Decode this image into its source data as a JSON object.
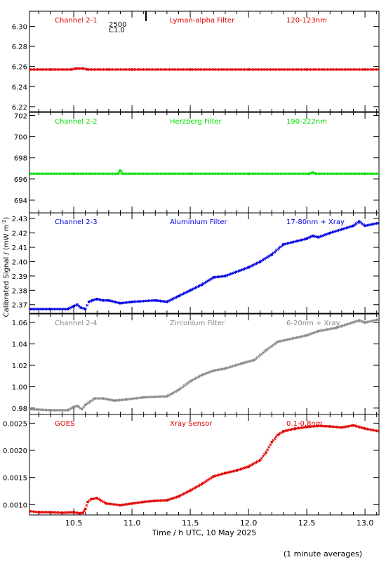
{
  "xlabel": "Time / h UTC, 10 May 2025",
  "ylabel": "Calibrated Signal / (mW m",
  "ylabel_sup": "-2",
  "ylabel_close": ")",
  "footnote": "(1 minute averages)",
  "top_marker": {
    "label_1": "2500",
    "label_2": "C1.0"
  },
  "x_ticks": [
    "10.5",
    "11.0",
    "11.5",
    "12.0",
    "12.5",
    "13.0"
  ],
  "chart_data": [
    {
      "type": "scatter",
      "channel": "Channel 2-1",
      "filter": "Lyman-alpha Filter",
      "band": "120-123nm",
      "color": "#e00000",
      "xlim": [
        10.12,
        13.12
      ],
      "ylim": [
        6.215,
        6.315
      ],
      "yticks": [
        "6.22",
        "6.24",
        "6.26",
        "6.28",
        "6.30"
      ],
      "x": [
        10.12,
        10.3,
        10.48,
        10.52,
        10.58,
        10.62,
        10.8,
        11.0,
        11.5,
        12.0,
        12.5,
        13.0,
        13.12
      ],
      "y": [
        6.257,
        6.257,
        6.257,
        6.258,
        6.258,
        6.257,
        6.257,
        6.257,
        6.257,
        6.257,
        6.257,
        6.257,
        6.257
      ]
    },
    {
      "type": "scatter",
      "channel": "Channel 2-2",
      "filter": "Herzberg Filter",
      "band": "190-222nm",
      "color": "#00e000",
      "xlim": [
        10.12,
        13.12
      ],
      "ylim": [
        692.8,
        702.3
      ],
      "yticks": [
        "694",
        "696",
        "698",
        "700",
        "702"
      ],
      "x": [
        10.12,
        10.5,
        10.88,
        10.9,
        10.92,
        11.5,
        12.0,
        12.52,
        12.55,
        12.58,
        13.0,
        13.12
      ],
      "y": [
        696.5,
        696.5,
        696.5,
        696.8,
        696.5,
        696.5,
        696.5,
        696.5,
        696.6,
        696.5,
        696.5,
        696.5
      ]
    },
    {
      "type": "scatter",
      "channel": "Channel 2-3",
      "filter": "Aluminium Filter",
      "band": "17-80nm + Xray",
      "color": "#0000e0",
      "xlim": [
        10.12,
        13.12
      ],
      "ylim": [
        2.364,
        2.434
      ],
      "yticks": [
        "2.37",
        "2.38",
        "2.39",
        "2.40",
        "2.41",
        "2.42",
        "2.43"
      ],
      "x": [
        10.12,
        10.3,
        10.45,
        10.5,
        10.53,
        10.56,
        10.6,
        10.63,
        10.66,
        10.7,
        10.75,
        10.8,
        10.9,
        11.0,
        11.2,
        11.3,
        11.4,
        11.5,
        11.6,
        11.7,
        11.8,
        12.0,
        12.1,
        12.2,
        12.3,
        12.5,
        12.55,
        12.6,
        12.7,
        12.9,
        12.95,
        13.0,
        13.12
      ],
      "y": [
        2.367,
        2.367,
        2.367,
        2.369,
        2.37,
        2.368,
        2.367,
        2.372,
        2.373,
        2.374,
        2.373,
        2.373,
        2.371,
        2.372,
        2.373,
        2.372,
        2.376,
        2.38,
        2.384,
        2.389,
        2.39,
        2.396,
        2.4,
        2.405,
        2.412,
        2.416,
        2.418,
        2.417,
        2.42,
        2.425,
        2.428,
        2.425,
        2.427
      ]
    },
    {
      "type": "scatter",
      "channel": "Channel 2-4",
      "filter": "Zirconium Filter",
      "band": "6-20nm + Xray",
      "color": "#888888",
      "xlim": [
        10.12,
        13.12
      ],
      "ylim": [
        0.974,
        1.068
      ],
      "yticks": [
        "0.98",
        "1.00",
        "1.02",
        "1.04",
        "1.06"
      ],
      "x": [
        10.12,
        10.3,
        10.45,
        10.5,
        10.53,
        10.57,
        10.6,
        10.64,
        10.68,
        10.75,
        10.85,
        10.95,
        11.1,
        11.3,
        11.4,
        11.5,
        11.6,
        11.7,
        11.8,
        11.95,
        12.05,
        12.15,
        12.25,
        12.5,
        12.6,
        12.75,
        12.95,
        13.0,
        13.12
      ],
      "y": [
        0.979,
        0.978,
        0.978,
        0.981,
        0.982,
        0.979,
        0.983,
        0.986,
        0.989,
        0.989,
        0.987,
        0.988,
        0.99,
        0.991,
        0.997,
        1.005,
        1.011,
        1.015,
        1.017,
        1.022,
        1.025,
        1.034,
        1.042,
        1.048,
        1.052,
        1.055,
        1.062,
        1.06,
        1.063
      ]
    },
    {
      "type": "scatter",
      "channel": "GOES",
      "filter": "Xray Sensor",
      "band": "0.1-0.8nm",
      "color": "#e00000",
      "xlim": [
        10.12,
        13.12
      ],
      "ylim": [
        0.00081,
        0.00266
      ],
      "yticks": [
        "0.0010",
        "0.0015",
        "0.0020",
        "0.0025"
      ],
      "x": [
        10.12,
        10.2,
        10.3,
        10.4,
        10.5,
        10.55,
        10.58,
        10.6,
        10.62,
        10.65,
        10.7,
        10.78,
        10.9,
        11.0,
        11.1,
        11.2,
        11.3,
        11.4,
        11.5,
        11.6,
        11.7,
        11.8,
        11.9,
        12.0,
        12.1,
        12.15,
        12.2,
        12.25,
        12.3,
        12.4,
        12.5,
        12.6,
        12.7,
        12.8,
        12.9,
        13.0,
        13.12
      ],
      "y": [
        0.00088,
        0.00086,
        0.00086,
        0.00085,
        0.00086,
        0.00084,
        0.00085,
        0.00092,
        0.00105,
        0.0011,
        0.00112,
        0.00102,
        0.00099,
        0.00102,
        0.00105,
        0.00107,
        0.00108,
        0.00115,
        0.00126,
        0.00138,
        0.00152,
        0.00158,
        0.00163,
        0.0017,
        0.00182,
        0.00196,
        0.00215,
        0.00228,
        0.00235,
        0.0024,
        0.00243,
        0.00245,
        0.00244,
        0.00242,
        0.00246,
        0.0024,
        0.00235
      ]
    }
  ]
}
